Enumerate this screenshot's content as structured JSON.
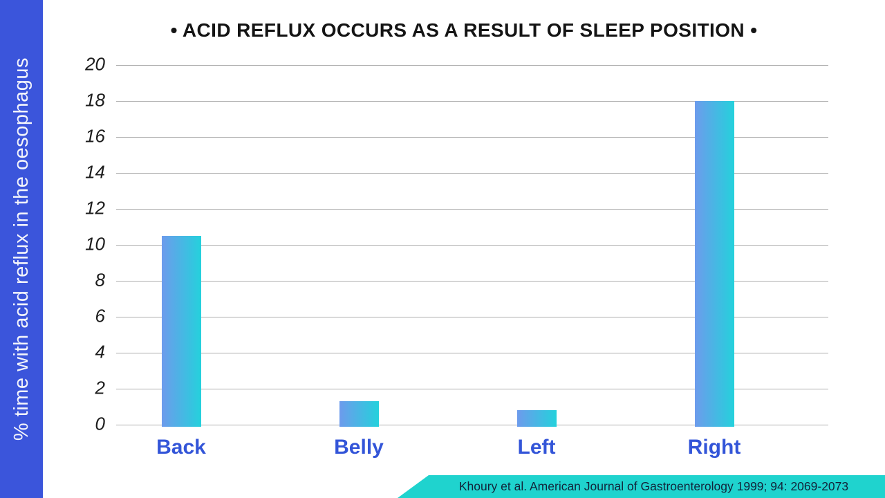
{
  "header": {
    "title": "• ACID REFLUX OCCURS AS A RESULT OF SLEEP POSITION •"
  },
  "source_banner": {
    "text": "Khoury et al. American Journal of Gastroenterology 1999; 94: 2069-2073"
  },
  "colors": {
    "sidebar_blue": "#3B55DB",
    "bar_gradient_start": "#6D9BEC",
    "bar_gradient_end": "#24D1DC",
    "category_label_blue": "#3355D8",
    "banner_teal": "#1FD3CE",
    "banner_text": "#12243A",
    "gridline_gray": "#ADADAD"
  },
  "chart_data": {
    "type": "bar",
    "title": "ACID REFLUX OCCURS AS A RESULT OF SLEEP POSITION",
    "categories": [
      "Back",
      "Belly",
      "Left",
      "Right"
    ],
    "values": [
      10.5,
      1.3,
      0.8,
      18
    ],
    "xlabel": "",
    "ylabel": "% time with acid reflux in the oesophagus",
    "ylim": [
      0,
      20
    ],
    "yticks": [
      0,
      2,
      4,
      6,
      8,
      10,
      12,
      14,
      16,
      18,
      20
    ],
    "grid": true,
    "legend": "none",
    "source": "Khoury et al. American Journal of Gastroenterology 1999; 94: 2069-2073"
  }
}
